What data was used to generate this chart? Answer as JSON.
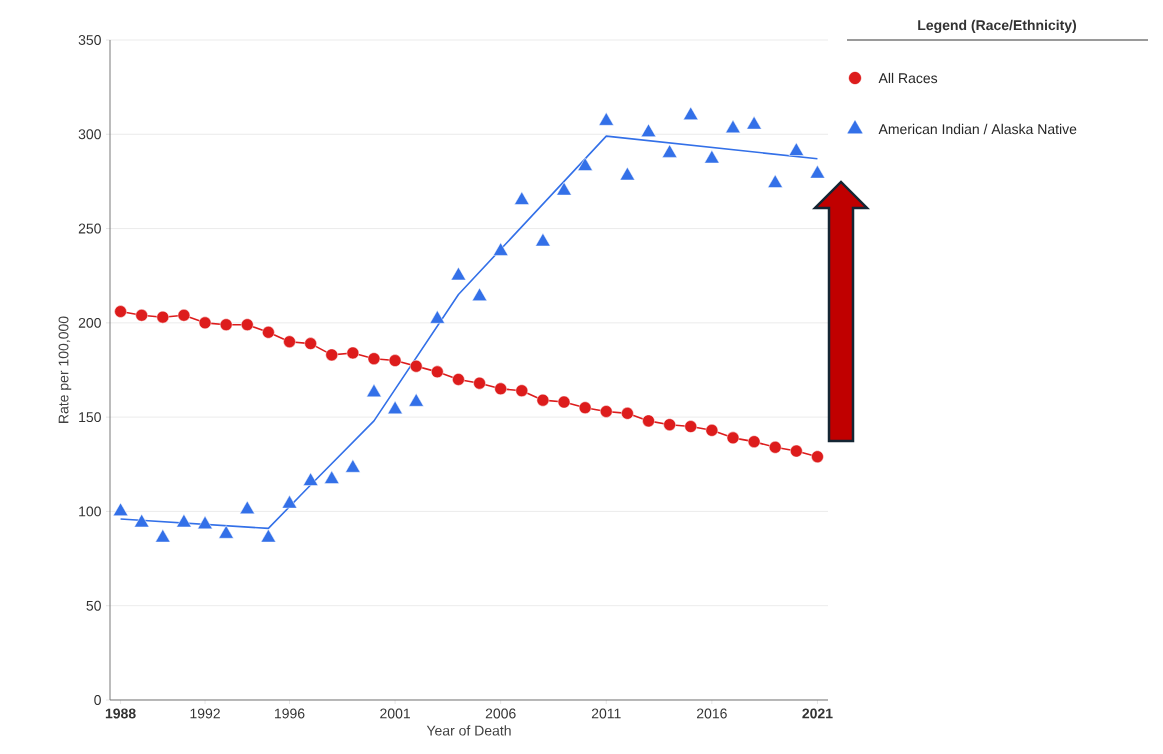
{
  "chart_data": {
    "type": "scatter",
    "xlabel": "Year of Death",
    "ylabel": "Rate per 100,000",
    "legend_title": "Legend (Race/Ethnicity)",
    "x": [
      1988,
      1989,
      1990,
      1991,
      1992,
      1993,
      1994,
      1995,
      1996,
      1997,
      1998,
      1999,
      2000,
      2001,
      2002,
      2003,
      2004,
      2005,
      2006,
      2007,
      2008,
      2009,
      2010,
      2011,
      2012,
      2013,
      2014,
      2015,
      2016,
      2017,
      2018,
      2019,
      2020,
      2021
    ],
    "series": [
      {
        "name": "All Races",
        "type": "line",
        "marker": "circle",
        "color": "#dd1c1c",
        "values": [
          206,
          204,
          203,
          204,
          200,
          199,
          199,
          195,
          190,
          189,
          183,
          184,
          181,
          180,
          177,
          174,
          170,
          168,
          165,
          164,
          159,
          158,
          155,
          153,
          152,
          148,
          146,
          145,
          143,
          139,
          137,
          134,
          132,
          129
        ]
      },
      {
        "name": "American Indian / Alaska Native",
        "marker": "triangle",
        "color": "#3370e8",
        "values": [
          100,
          94,
          86,
          94,
          93,
          88,
          101,
          86,
          104,
          116,
          117,
          123,
          163,
          154,
          158,
          202,
          225,
          214,
          238,
          265,
          243,
          270,
          283,
          307,
          278,
          301,
          290,
          310,
          287,
          303,
          305,
          274,
          291,
          279
        ]
      },
      {
        "type": "line",
        "marker": "none",
        "color": "#3370e8",
        "x": [
          1988,
          1995,
          1997,
          2000,
          2004,
          2011,
          2021
        ],
        "values": [
          96,
          91,
          114,
          148,
          215,
          299,
          287
        ]
      }
    ],
    "xlim": [
      1987.5,
      2021.5
    ],
    "xticks": [
      1988,
      1992,
      1996,
      2001,
      2006,
      2011,
      2016,
      2021
    ],
    "ylim": [
      0,
      350
    ],
    "yticks": [
      0,
      50,
      100,
      150,
      200,
      250,
      300,
      350
    ],
    "grid": "y",
    "legend": "right"
  }
}
